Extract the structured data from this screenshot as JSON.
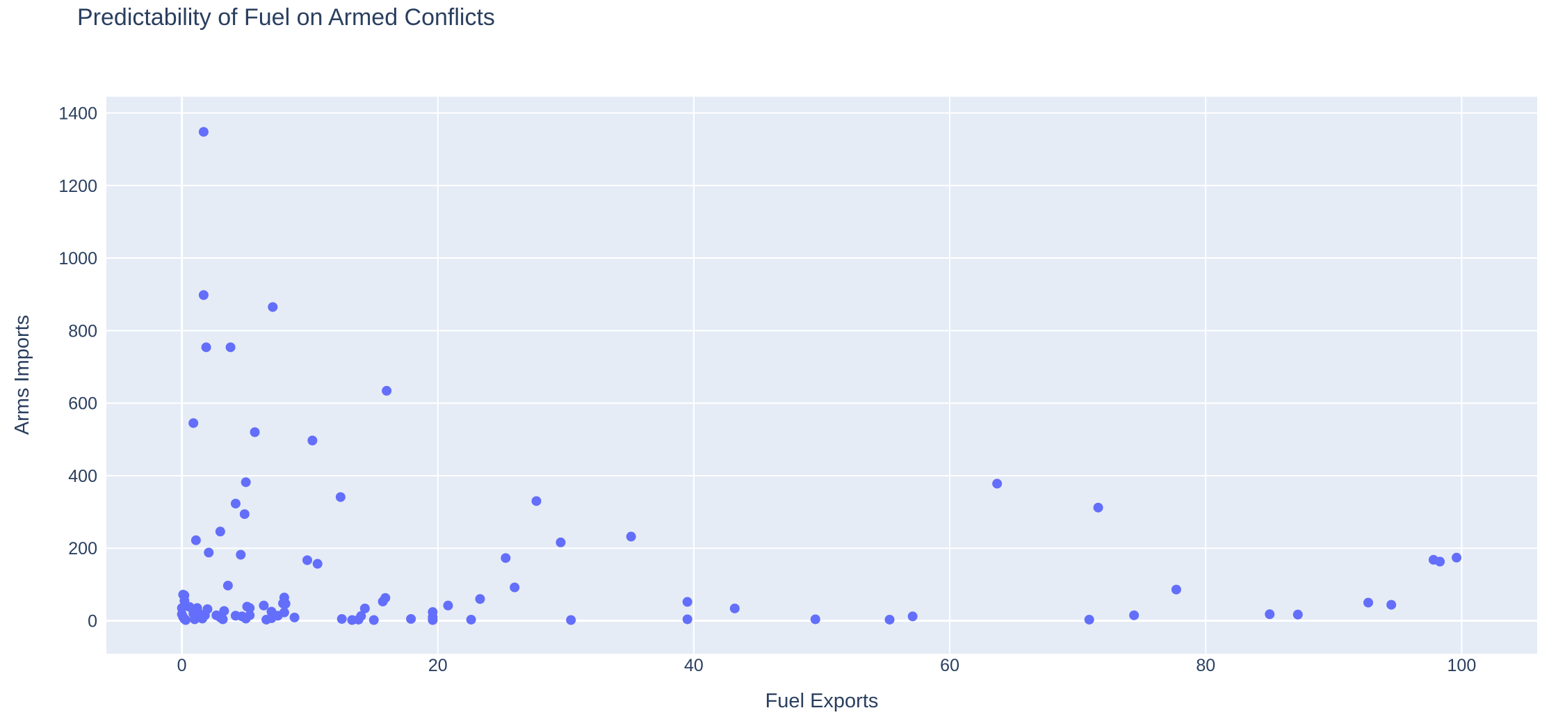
{
  "chart_data": {
    "type": "scatter",
    "title": "Predictability of Fuel on Armed Conflicts",
    "xlabel": "Fuel Exports",
    "ylabel": "Arms Imports",
    "xlim": [
      -5.9,
      105.9
    ],
    "ylim": [
      -91,
      1445
    ],
    "x_ticks": [
      0,
      20,
      40,
      60,
      80,
      100
    ],
    "y_ticks": [
      0,
      200,
      400,
      600,
      800,
      1000,
      1200,
      1400
    ],
    "grid": true,
    "marker_color": "#636efa",
    "plot_bg": "#e5ecf6",
    "points": [
      {
        "x": 1.7,
        "y": 1348
      },
      {
        "x": 1.7,
        "y": 898
      },
      {
        "x": 1.9,
        "y": 754
      },
      {
        "x": 3.8,
        "y": 754
      },
      {
        "x": 7.1,
        "y": 865
      },
      {
        "x": 0.9,
        "y": 545
      },
      {
        "x": 5.7,
        "y": 520
      },
      {
        "x": 10.2,
        "y": 497
      },
      {
        "x": 16.0,
        "y": 634
      },
      {
        "x": 5.0,
        "y": 382
      },
      {
        "x": 4.2,
        "y": 323
      },
      {
        "x": 4.9,
        "y": 294
      },
      {
        "x": 12.4,
        "y": 341
      },
      {
        "x": 1.1,
        "y": 222
      },
      {
        "x": 3.0,
        "y": 246
      },
      {
        "x": 2.1,
        "y": 188
      },
      {
        "x": 4.6,
        "y": 182
      },
      {
        "x": 9.8,
        "y": 167
      },
      {
        "x": 10.6,
        "y": 157
      },
      {
        "x": 3.6,
        "y": 97
      },
      {
        "x": 63.7,
        "y": 378
      },
      {
        "x": 71.6,
        "y": 312
      },
      {
        "x": 27.7,
        "y": 330
      },
      {
        "x": 29.6,
        "y": 216
      },
      {
        "x": 35.1,
        "y": 232
      },
      {
        "x": 25.3,
        "y": 173
      },
      {
        "x": 26.0,
        "y": 92
      },
      {
        "x": 97.8,
        "y": 168
      },
      {
        "x": 98.3,
        "y": 163
      },
      {
        "x": 99.6,
        "y": 174
      },
      {
        "x": 77.7,
        "y": 86
      },
      {
        "x": 23.3,
        "y": 60
      },
      {
        "x": 15.9,
        "y": 63
      },
      {
        "x": 15.7,
        "y": 53
      },
      {
        "x": 8.0,
        "y": 64
      },
      {
        "x": 7.9,
        "y": 48
      },
      {
        "x": 8.1,
        "y": 47
      },
      {
        "x": 39.5,
        "y": 52
      },
      {
        "x": 43.2,
        "y": 34
      },
      {
        "x": 20.8,
        "y": 42
      },
      {
        "x": 14.3,
        "y": 34
      },
      {
        "x": 92.7,
        "y": 50
      },
      {
        "x": 94.5,
        "y": 44
      },
      {
        "x": 0.1,
        "y": 72
      },
      {
        "x": 0.2,
        "y": 70
      },
      {
        "x": 0.2,
        "y": 55
      },
      {
        "x": 0.0,
        "y": 35
      },
      {
        "x": 0.6,
        "y": 38
      },
      {
        "x": 1.2,
        "y": 35
      },
      {
        "x": 2.0,
        "y": 32
      },
      {
        "x": 3.3,
        "y": 27
      },
      {
        "x": 5.1,
        "y": 39
      },
      {
        "x": 5.3,
        "y": 35
      },
      {
        "x": 6.4,
        "y": 42
      },
      {
        "x": 7.0,
        "y": 25
      },
      {
        "x": 8.0,
        "y": 23
      },
      {
        "x": 19.6,
        "y": 24
      },
      {
        "x": 0.0,
        "y": 18
      },
      {
        "x": 0.1,
        "y": 10
      },
      {
        "x": 0.2,
        "y": 5
      },
      {
        "x": 0.3,
        "y": 2
      },
      {
        "x": 0.9,
        "y": 20
      },
      {
        "x": 1.0,
        "y": 4
      },
      {
        "x": 1.4,
        "y": 18
      },
      {
        "x": 1.6,
        "y": 6
      },
      {
        "x": 1.8,
        "y": 15
      },
      {
        "x": 2.7,
        "y": 15
      },
      {
        "x": 3.0,
        "y": 9
      },
      {
        "x": 3.2,
        "y": 4
      },
      {
        "x": 4.2,
        "y": 14
      },
      {
        "x": 4.7,
        "y": 12
      },
      {
        "x": 5.0,
        "y": 6
      },
      {
        "x": 5.3,
        "y": 15
      },
      {
        "x": 6.6,
        "y": 3
      },
      {
        "x": 7.0,
        "y": 7
      },
      {
        "x": 7.5,
        "y": 14
      },
      {
        "x": 8.8,
        "y": 9
      },
      {
        "x": 12.5,
        "y": 5
      },
      {
        "x": 13.3,
        "y": 2
      },
      {
        "x": 13.8,
        "y": 3
      },
      {
        "x": 14.0,
        "y": 13
      },
      {
        "x": 15.0,
        "y": 2
      },
      {
        "x": 17.9,
        "y": 5
      },
      {
        "x": 19.6,
        "y": 10
      },
      {
        "x": 19.6,
        "y": 2
      },
      {
        "x": 22.6,
        "y": 3
      },
      {
        "x": 30.4,
        "y": 2
      },
      {
        "x": 39.5,
        "y": 4
      },
      {
        "x": 49.5,
        "y": 4
      },
      {
        "x": 55.3,
        "y": 3
      },
      {
        "x": 57.1,
        "y": 12
      },
      {
        "x": 70.9,
        "y": 3
      },
      {
        "x": 74.4,
        "y": 15
      },
      {
        "x": 85.0,
        "y": 18
      },
      {
        "x": 87.2,
        "y": 17
      }
    ]
  }
}
